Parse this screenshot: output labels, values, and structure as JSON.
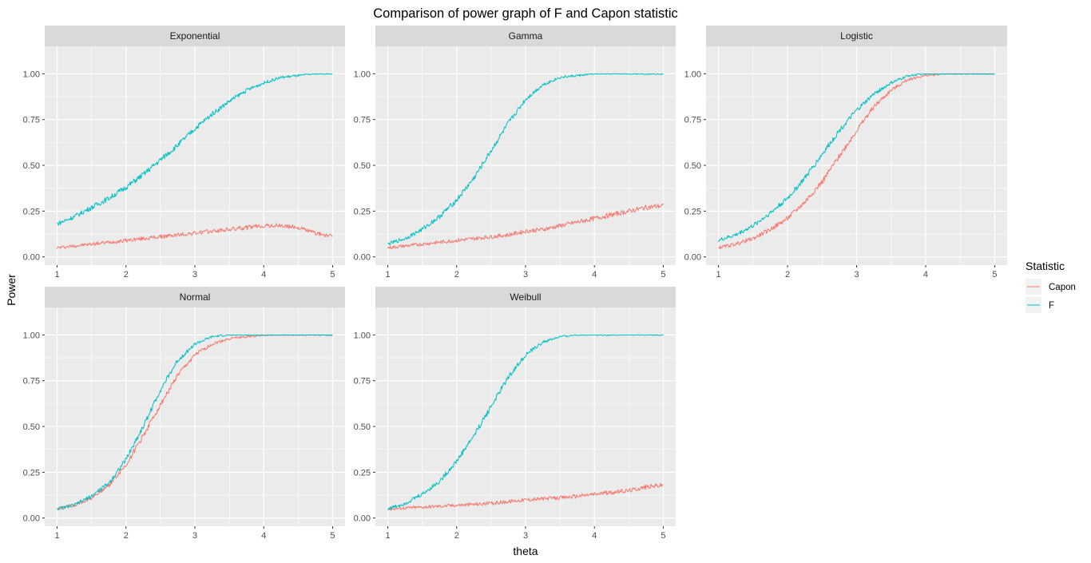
{
  "chart_data": {
    "type": "line",
    "title": "Comparison of power graph of F and Capon statistic",
    "xlabel": "theta",
    "ylabel": "Power",
    "xlim": [
      1,
      5
    ],
    "ylim": [
      0,
      1
    ],
    "x_ticks": [
      "1",
      "2",
      "3",
      "4",
      "5"
    ],
    "y_ticks": [
      "0.00",
      "0.25",
      "0.50",
      "0.75",
      "1.00"
    ],
    "grid": true,
    "legend": {
      "title": "Statistic",
      "placement": "right",
      "entries": [
        {
          "label": "Capon",
          "color": "#F8766D"
        },
        {
          "label": "F",
          "color": "#00BFC4"
        }
      ]
    },
    "x": [
      1.0,
      1.25,
      1.5,
      1.75,
      2.0,
      2.25,
      2.5,
      2.75,
      3.0,
      3.25,
      3.5,
      3.75,
      4.0,
      4.25,
      4.5,
      4.75,
      5.0
    ],
    "facets": [
      {
        "name": "Exponential",
        "series": [
          {
            "name": "Capon",
            "values": [
              0.05,
              0.06,
              0.07,
              0.08,
              0.09,
              0.1,
              0.11,
              0.12,
              0.13,
              0.14,
              0.15,
              0.16,
              0.17,
              0.17,
              0.16,
              0.13,
              0.11
            ]
          },
          {
            "name": "F",
            "values": [
              0.18,
              0.22,
              0.27,
              0.32,
              0.38,
              0.45,
              0.53,
              0.61,
              0.7,
              0.78,
              0.85,
              0.91,
              0.95,
              0.98,
              0.99,
              1.0,
              1.0
            ]
          }
        ]
      },
      {
        "name": "Gamma",
        "series": [
          {
            "name": "Capon",
            "values": [
              0.05,
              0.06,
              0.07,
              0.08,
              0.09,
              0.1,
              0.11,
              0.12,
              0.14,
              0.15,
              0.17,
              0.19,
              0.21,
              0.23,
              0.25,
              0.27,
              0.28
            ]
          },
          {
            "name": "F",
            "values": [
              0.07,
              0.1,
              0.15,
              0.22,
              0.31,
              0.43,
              0.58,
              0.73,
              0.86,
              0.94,
              0.98,
              0.99,
              1.0,
              1.0,
              1.0,
              1.0,
              1.0
            ]
          }
        ]
      },
      {
        "name": "Logistic",
        "series": [
          {
            "name": "Capon",
            "values": [
              0.05,
              0.07,
              0.1,
              0.15,
              0.21,
              0.3,
              0.41,
              0.55,
              0.69,
              0.82,
              0.91,
              0.97,
              0.99,
              1.0,
              1.0,
              1.0,
              1.0
            ]
          },
          {
            "name": "F",
            "values": [
              0.09,
              0.12,
              0.17,
              0.24,
              0.32,
              0.43,
              0.56,
              0.69,
              0.8,
              0.89,
              0.95,
              0.99,
              1.0,
              1.0,
              1.0,
              1.0,
              1.0
            ]
          }
        ]
      },
      {
        "name": "Normal",
        "series": [
          {
            "name": "Capon",
            "values": [
              0.05,
              0.07,
              0.11,
              0.18,
              0.29,
              0.45,
              0.62,
              0.78,
              0.89,
              0.95,
              0.98,
              0.99,
              1.0,
              1.0,
              1.0,
              1.0,
              1.0
            ]
          },
          {
            "name": "F",
            "values": [
              0.05,
              0.07,
              0.12,
              0.19,
              0.32,
              0.5,
              0.7,
              0.86,
              0.95,
              0.99,
              1.0,
              1.0,
              1.0,
              1.0,
              1.0,
              1.0,
              1.0
            ]
          }
        ]
      },
      {
        "name": "Weibull",
        "series": [
          {
            "name": "Capon",
            "values": [
              0.05,
              0.055,
              0.06,
              0.065,
              0.07,
              0.075,
              0.08,
              0.09,
              0.1,
              0.105,
              0.11,
              0.12,
              0.13,
              0.14,
              0.15,
              0.17,
              0.18
            ]
          },
          {
            "name": "F",
            "values": [
              0.05,
              0.08,
              0.13,
              0.2,
              0.31,
              0.45,
              0.61,
              0.77,
              0.89,
              0.96,
              0.99,
              1.0,
              1.0,
              1.0,
              1.0,
              1.0,
              1.0
            ]
          }
        ]
      }
    ]
  }
}
